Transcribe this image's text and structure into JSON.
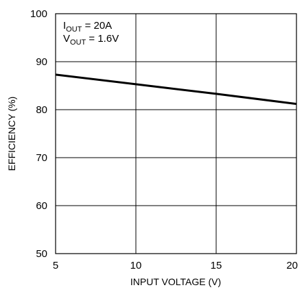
{
  "chart_data": {
    "type": "line",
    "xlabel": "INPUT VOLTAGE (V)",
    "ylabel": "EFFICIENCY (%)",
    "xlim": [
      5,
      20
    ],
    "ylim": [
      50,
      100
    ],
    "x_ticks": [
      "5",
      "10",
      "15",
      "20"
    ],
    "y_ticks": [
      "50",
      "60",
      "70",
      "80",
      "90",
      "100"
    ],
    "grid": true,
    "annotation": {
      "line1_main": "I",
      "line1_sub": "OUT",
      "line1_rest": " = 20A",
      "line2_main": "V",
      "line2_sub": "OUT",
      "line2_rest": " = 1.6V"
    },
    "series": [
      {
        "x": [
          5,
          10,
          15,
          20
        ],
        "y": [
          87.3,
          85.3,
          83.3,
          81.2
        ]
      }
    ],
    "line_color": "#000000",
    "grid_color": "#000000"
  }
}
